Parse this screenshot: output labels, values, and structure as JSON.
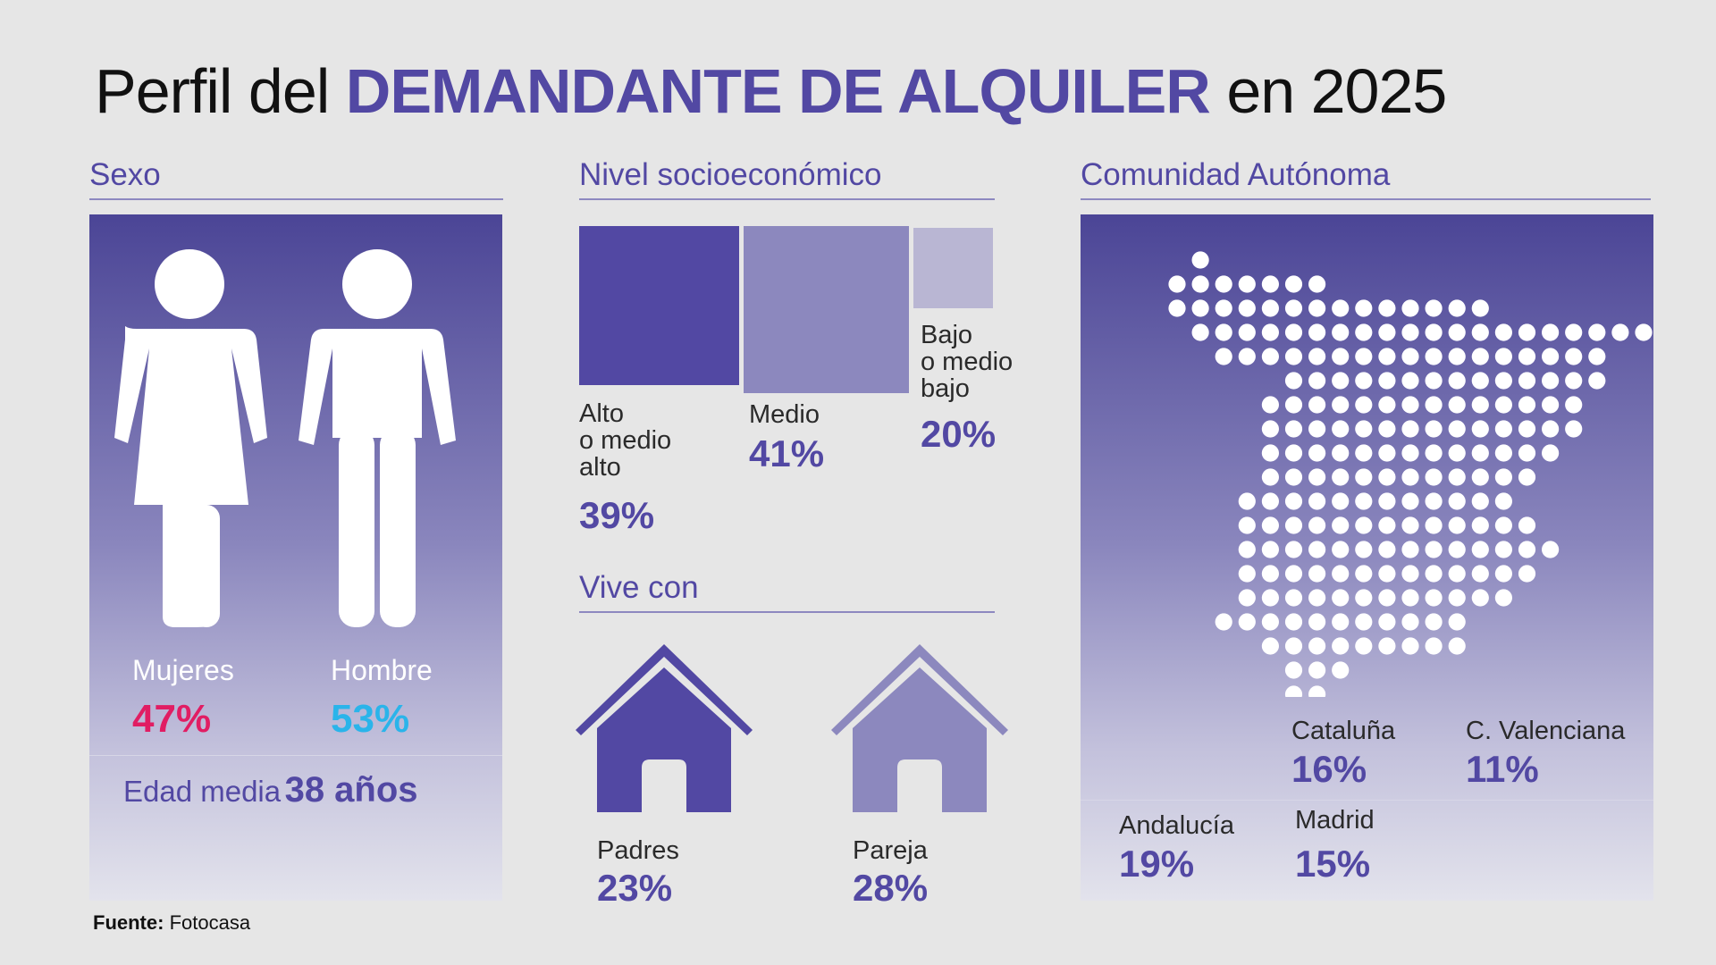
{
  "title": {
    "pre": "Perfil del",
    "highlight": "DEMANDANTE DE ALQUILER",
    "post": "en 2025"
  },
  "sections": {
    "sexo": "Sexo",
    "nivel": "Nivel socioeconómico",
    "comunidad": "Comunidad Autónoma",
    "vive": "Vive con"
  },
  "colors": {
    "accent": "#5248a3",
    "mujeres": "#e11d63",
    "hombre": "#2ab4ea",
    "medio": "#8c88be",
    "bajo": "#b9b6d3"
  },
  "icons": [
    "woman-icon",
    "man-icon",
    "house-icon",
    "spain-map-icon"
  ],
  "chart_data": [
    {
      "type": "pictogram",
      "categories": [
        "Mujeres",
        "Hombre"
      ],
      "values": [
        "47%",
        "53%"
      ],
      "note_label": "Edad media",
      "note_value": "38 años"
    },
    {
      "type": "proportional-squares",
      "categories": [
        "Alto\no medio\nalto",
        "Medio",
        "Bajo\no medio\nbajo"
      ],
      "values": [
        "39%",
        "41%",
        "20%"
      ]
    },
    {
      "type": "pictogram",
      "categories": [
        "Padres",
        "Pareja"
      ],
      "values": [
        "23%",
        "28%"
      ]
    },
    {
      "type": "dot-map",
      "categories": [
        "Cataluña",
        "C. Valenciana",
        "Andalucía",
        "Madrid"
      ],
      "values": [
        "16%",
        "11%",
        "19%",
        "15%"
      ]
    }
  ],
  "source": {
    "label": "Fuente:",
    "value": "Fotocasa"
  }
}
